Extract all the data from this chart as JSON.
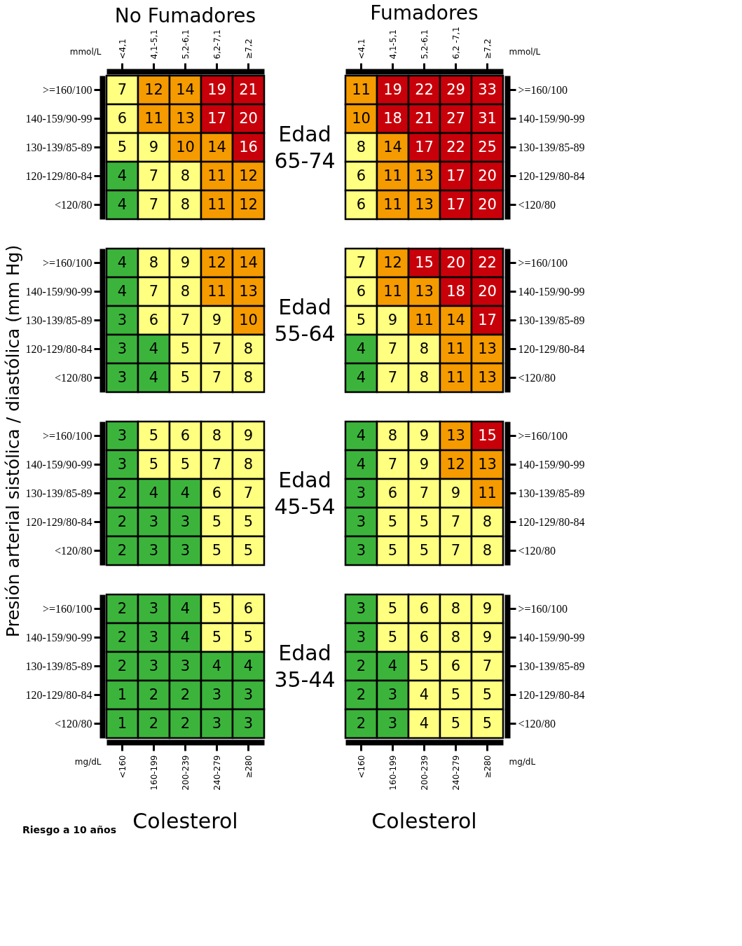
{
  "chart_data": [
    {
      "type": "heatmap",
      "title": "No Fumadores",
      "xlabel": "mmol/L",
      "ylabel": "Presión arterial sistólica / diastólica (mm Hg)",
      "annotations": [
        "Edad 65-74"
      ],
      "data_labels": true,
      "categories": [
        "<4,1",
        "4,1-5,1",
        "5,2-6,1",
        "6,2-7,1",
        "≥7,2"
      ],
      "y_categories": [
        ">=160/100",
        "140-159/90-99",
        "130-139/85-89",
        "120-129/80-84",
        "<120/80"
      ],
      "cells": [
        [
          7,
          12,
          14,
          19,
          21
        ],
        [
          6,
          11,
          13,
          17,
          20
        ],
        [
          5,
          9,
          10,
          14,
          16
        ],
        [
          4,
          7,
          8,
          11,
          12
        ],
        [
          4,
          7,
          8,
          11,
          12
        ]
      ],
      "colors": [
        [
          "#ffff80",
          "#f59b00",
          "#f59b00",
          "#c8000a",
          "#c8000a"
        ],
        [
          "#ffff80",
          "#f59b00",
          "#f59b00",
          "#c8000a",
          "#c8000a"
        ],
        [
          "#ffff80",
          "#ffff80",
          "#f59b00",
          "#f59b00",
          "#c8000a"
        ],
        [
          "#3cb43c",
          "#ffff80",
          "#ffff80",
          "#f59b00",
          "#f59b00"
        ],
        [
          "#3cb43c",
          "#ffff80",
          "#ffff80",
          "#f59b00",
          "#f59b00"
        ]
      ]
    },
    {
      "type": "heatmap",
      "title": "Fumadores",
      "xlabel": "mmol/L",
      "data_labels": true,
      "categories": [
        "<4,1",
        "4,1-5,1",
        "5,2-6,1",
        "6,2 -7,1",
        "≥7,2"
      ],
      "y_categories": [
        ">=160/100",
        "140-159/90-99",
        "130-139/85-89",
        "120-129/80-84",
        "<120/80"
      ],
      "cells": [
        [
          11,
          19,
          22,
          29,
          33
        ],
        [
          10,
          18,
          21,
          27,
          31
        ],
        [
          8,
          14,
          17,
          22,
          25
        ],
        [
          6,
          11,
          13,
          17,
          20
        ],
        [
          6,
          11,
          13,
          17,
          20
        ]
      ],
      "colors": [
        [
          "#f59b00",
          "#c8000a",
          "#c8000a",
          "#c8000a",
          "#c8000a"
        ],
        [
          "#f59b00",
          "#c8000a",
          "#c8000a",
          "#c8000a",
          "#c8000a"
        ],
        [
          "#ffff80",
          "#f59b00",
          "#c8000a",
          "#c8000a",
          "#c8000a"
        ],
        [
          "#ffff80",
          "#f59b00",
          "#f59b00",
          "#c8000a",
          "#c8000a"
        ],
        [
          "#ffff80",
          "#f59b00",
          "#f59b00",
          "#c8000a",
          "#c8000a"
        ]
      ]
    },
    {
      "type": "heatmap",
      "annotations": [
        "Edad 55-64"
      ],
      "data_labels": true,
      "tick_labels": "y",
      "categories": [
        null,
        null,
        null,
        null,
        null
      ],
      "y_categories": [
        ">=160/100",
        "140-159/90-99",
        "130-139/85-89",
        "120-129/80-84",
        "<120/80"
      ],
      "cells": [
        [
          4,
          8,
          9,
          12,
          14
        ],
        [
          4,
          7,
          8,
          11,
          13
        ],
        [
          3,
          6,
          7,
          9,
          10
        ],
        [
          3,
          4,
          5,
          7,
          8
        ],
        [
          3,
          4,
          5,
          7,
          8
        ]
      ],
      "colors": [
        [
          "#3cb43c",
          "#ffff80",
          "#ffff80",
          "#f59b00",
          "#f59b00"
        ],
        [
          "#3cb43c",
          "#ffff80",
          "#ffff80",
          "#f59b00",
          "#f59b00"
        ],
        [
          "#3cb43c",
          "#ffff80",
          "#ffff80",
          "#ffff80",
          "#f59b00"
        ],
        [
          "#3cb43c",
          "#3cb43c",
          "#ffff80",
          "#ffff80",
          "#ffff80"
        ],
        [
          "#3cb43c",
          "#3cb43c",
          "#ffff80",
          "#ffff80",
          "#ffff80"
        ]
      ]
    },
    {
      "type": "heatmap",
      "data_labels": true,
      "tick_labels": "y",
      "categories": [
        null,
        null,
        null,
        null,
        null
      ],
      "y_categories": [
        ">=160/100",
        "140-159/90-99",
        "130-139/85-89",
        "120-129/80-84",
        "<120/80"
      ],
      "cells": [
        [
          7,
          12,
          15,
          20,
          22
        ],
        [
          6,
          11,
          13,
          18,
          20
        ],
        [
          5,
          9,
          11,
          14,
          17
        ],
        [
          4,
          7,
          8,
          11,
          13
        ],
        [
          4,
          7,
          8,
          11,
          13
        ]
      ],
      "colors": [
        [
          "#ffff80",
          "#f59b00",
          "#c8000a",
          "#c8000a",
          "#c8000a"
        ],
        [
          "#ffff80",
          "#f59b00",
          "#f59b00",
          "#c8000a",
          "#c8000a"
        ],
        [
          "#ffff80",
          "#ffff80",
          "#f59b00",
          "#f59b00",
          "#c8000a"
        ],
        [
          "#3cb43c",
          "#ffff80",
          "#ffff80",
          "#f59b00",
          "#f59b00"
        ],
        [
          "#3cb43c",
          "#ffff80",
          "#ffff80",
          "#f59b00",
          "#f59b00"
        ]
      ]
    },
    {
      "type": "heatmap",
      "annotations": [
        "Edad 45-54"
      ],
      "data_labels": true,
      "tick_labels": "y",
      "categories": [
        null,
        null,
        null,
        null,
        null
      ],
      "y_categories": [
        ">=160/100",
        "140-159/90-99",
        "130-139/85-89",
        "120-129/80-84",
        "<120/80"
      ],
      "cells": [
        [
          3,
          5,
          6,
          8,
          9
        ],
        [
          3,
          5,
          5,
          7,
          8
        ],
        [
          2,
          4,
          4,
          6,
          7
        ],
        [
          2,
          3,
          3,
          5,
          5
        ],
        [
          2,
          3,
          3,
          5,
          5
        ]
      ],
      "colors": [
        [
          "#3cb43c",
          "#ffff80",
          "#ffff80",
          "#ffff80",
          "#ffff80"
        ],
        [
          "#3cb43c",
          "#ffff80",
          "#ffff80",
          "#ffff80",
          "#ffff80"
        ],
        [
          "#3cb43c",
          "#3cb43c",
          "#3cb43c",
          "#ffff80",
          "#ffff80"
        ],
        [
          "#3cb43c",
          "#3cb43c",
          "#3cb43c",
          "#ffff80",
          "#ffff80"
        ],
        [
          "#3cb43c",
          "#3cb43c",
          "#3cb43c",
          "#ffff80",
          "#ffff80"
        ]
      ]
    },
    {
      "type": "heatmap",
      "data_labels": true,
      "tick_labels": "y",
      "categories": [
        null,
        null,
        null,
        null,
        null
      ],
      "y_categories": [
        ">=160/100",
        "140-159/90-99",
        "130-139/85-89",
        "120-129/80-84",
        "<120/80"
      ],
      "cells": [
        [
          4,
          8,
          9,
          13,
          15
        ],
        [
          4,
          7,
          9,
          12,
          13
        ],
        [
          3,
          6,
          7,
          9,
          11
        ],
        [
          3,
          5,
          5,
          7,
          8
        ],
        [
          3,
          5,
          5,
          7,
          8
        ]
      ],
      "colors": [
        [
          "#3cb43c",
          "#ffff80",
          "#ffff80",
          "#f59b00",
          "#c8000a"
        ],
        [
          "#3cb43c",
          "#ffff80",
          "#ffff80",
          "#f59b00",
          "#f59b00"
        ],
        [
          "#3cb43c",
          "#ffff80",
          "#ffff80",
          "#ffff80",
          "#f59b00"
        ],
        [
          "#3cb43c",
          "#ffff80",
          "#ffff80",
          "#ffff80",
          "#ffff80"
        ],
        [
          "#3cb43c",
          "#ffff80",
          "#ffff80",
          "#ffff80",
          "#ffff80"
        ]
      ]
    },
    {
      "type": "heatmap",
      "xlabel": "mg/dL",
      "annotations": [
        "Edad 35-44",
        "Colesterol",
        "Riesgo a 10 años"
      ],
      "data_labels": true,
      "categories": [
        "<160",
        "160-199",
        "200-239",
        "240-279",
        "≥280"
      ],
      "y_categories": [
        ">=160/100",
        "140-159/90-99",
        "130-139/85-89",
        "120-129/80-84",
        "<120/80"
      ],
      "cells": [
        [
          2,
          3,
          4,
          5,
          6
        ],
        [
          2,
          3,
          4,
          5,
          5
        ],
        [
          2,
          3,
          3,
          4,
          4
        ],
        [
          1,
          2,
          2,
          3,
          3
        ],
        [
          1,
          2,
          2,
          3,
          3
        ]
      ],
      "colors": [
        [
          "#3cb43c",
          "#3cb43c",
          "#3cb43c",
          "#ffff80",
          "#ffff80"
        ],
        [
          "#3cb43c",
          "#3cb43c",
          "#3cb43c",
          "#ffff80",
          "#ffff80"
        ],
        [
          "#3cb43c",
          "#3cb43c",
          "#3cb43c",
          "#3cb43c",
          "#3cb43c"
        ],
        [
          "#3cb43c",
          "#3cb43c",
          "#3cb43c",
          "#3cb43c",
          "#3cb43c"
        ],
        [
          "#3cb43c",
          "#3cb43c",
          "#3cb43c",
          "#3cb43c",
          "#3cb43c"
        ]
      ]
    },
    {
      "type": "heatmap",
      "xlabel": "mg/dL",
      "annotations": [
        "Colesterol"
      ],
      "data_labels": true,
      "categories": [
        "<160",
        "160-199",
        "200-239",
        "240-279",
        "≥280"
      ],
      "y_categories": [
        ">=160/100",
        "140-159/90-99",
        "130-139/85-89",
        "120-129/80-84",
        "<120/80"
      ],
      "cells": [
        [
          3,
          5,
          6,
          8,
          9
        ],
        [
          3,
          5,
          6,
          8,
          9
        ],
        [
          2,
          4,
          5,
          6,
          7
        ],
        [
          2,
          3,
          4,
          5,
          5
        ],
        [
          2,
          3,
          4,
          5,
          5
        ]
      ],
      "colors": [
        [
          "#3cb43c",
          "#ffff80",
          "#ffff80",
          "#ffff80",
          "#ffff80"
        ],
        [
          "#3cb43c",
          "#ffff80",
          "#ffff80",
          "#ffff80",
          "#ffff80"
        ],
        [
          "#3cb43c",
          "#3cb43c",
          "#ffff80",
          "#ffff80",
          "#ffff80"
        ],
        [
          "#3cb43c",
          "#3cb43c",
          "#ffff80",
          "#ffff80",
          "#ffff80"
        ],
        [
          "#3cb43c",
          "#3cb43c",
          "#ffff80",
          "#ffff80",
          "#ffff80"
        ]
      ]
    }
  ]
}
